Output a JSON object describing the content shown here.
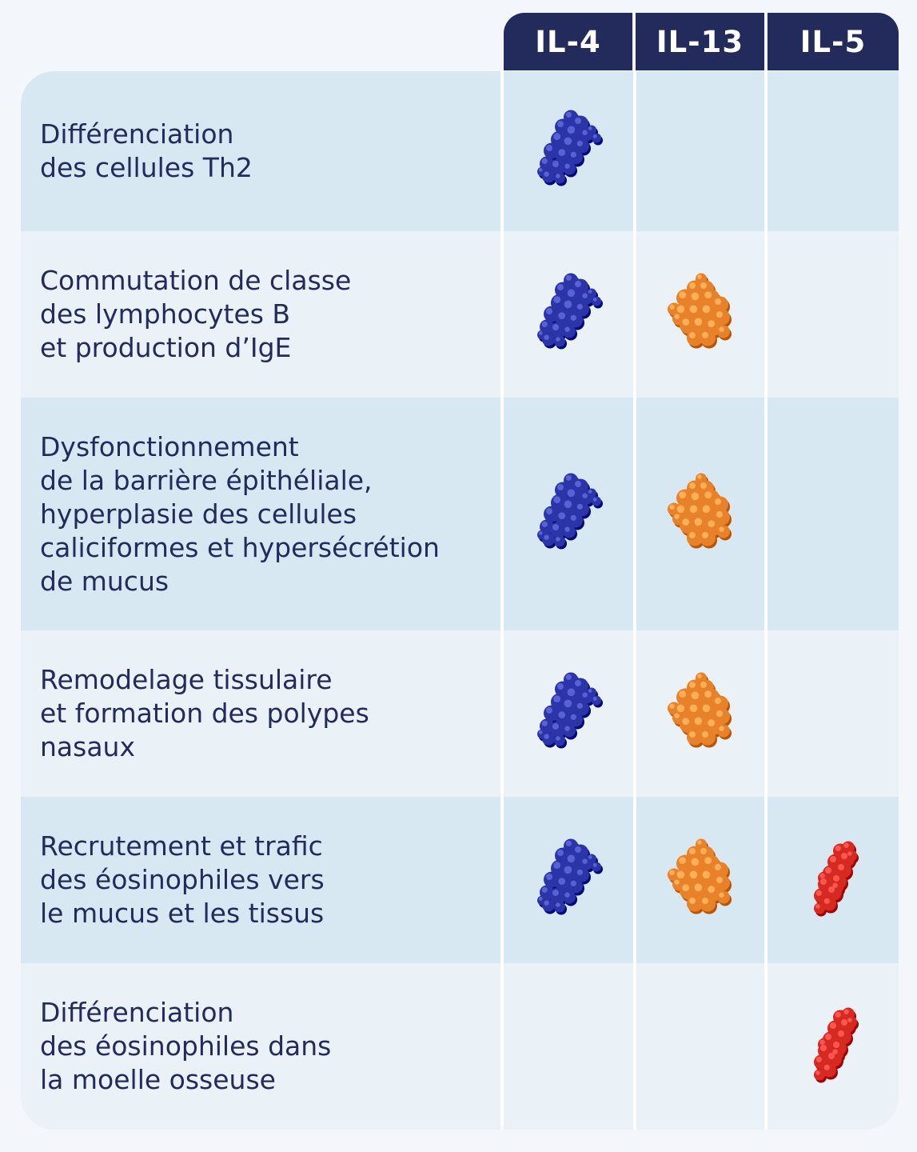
{
  "columns": [
    "IL-4",
    "IL-13",
    "IL-5"
  ],
  "rows": [
    {
      "label": "Différenciation\ndes cellules Th2",
      "il4": true,
      "il13": false,
      "il5": false
    },
    {
      "label": "Commutation de classe\ndes lymphocytes B\net production d’IgE",
      "il4": true,
      "il13": true,
      "il5": false
    },
    {
      "label": "Dysfonctionnement\nde la barrière épithéliale,\nhyperplasie des cellules\ncaliciformes et hypersécrétion\nde mucus",
      "il4": true,
      "il13": true,
      "il5": false
    },
    {
      "label": "Remodelage tissulaire\net formation des polypes\nnasaux",
      "il4": true,
      "il13": true,
      "il5": false
    },
    {
      "label": "Recrutement et trafic\ndes éosinophiles vers\nle mucus et les tissus",
      "il4": true,
      "il13": true,
      "il5": true
    },
    {
      "label": "Différenciation\ndes éosinophiles dans\nla moelle osseuse",
      "il4": false,
      "il13": false,
      "il5": true
    }
  ],
  "colors": {
    "header": "#232a5c",
    "text": "#232a5c",
    "row_dark": "#d8e8f3",
    "row_light": "#ebf2f7",
    "il4_molecule": "#2b35a8",
    "il13_molecule": "#e8822a",
    "il5_molecule": "#d42a22"
  }
}
